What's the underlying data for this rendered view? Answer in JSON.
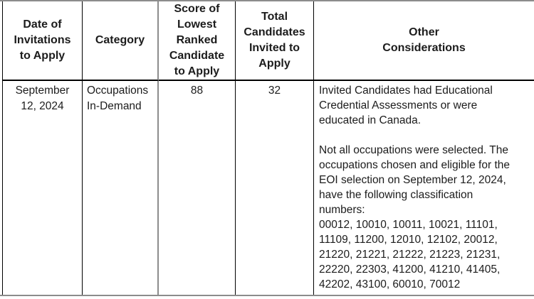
{
  "table": {
    "column_headers": [
      "Date of\nInvitations\nto Apply",
      "Category",
      "Score of\nLowest\nRanked\nCandidate\nto Apply",
      "Total\nCandidates\nInvited to\nApply",
      "Other\nConsiderations"
    ],
    "row": {
      "date": "September\n12, 2024",
      "category": "Occupations\nIn-Demand",
      "score": "88",
      "total_invited": "32",
      "other_considerations": "Invited Candidates had Educational\nCredential Assessments or were\neducated in Canada.\n\nNot all occupations were selected. The\noccupations chosen and eligible for the\nEOI selection on September 12, 2024,\nhave the following classification\nnumbers:\n00012, 10010, 10011, 10021, 11101,\n11109, 11200, 12010, 12102, 20012,\n21220, 21221, 21222, 21223, 21231,\n22220, 22303, 41200, 41210, 41405,\n42202, 43100, 60010, 70012"
    },
    "classification_numbers": [
      "00012",
      "10010",
      "10011",
      "10021",
      "11101",
      "11109",
      "11200",
      "12010",
      "12102",
      "20012",
      "21220",
      "21221",
      "21222",
      "21223",
      "21231",
      "22220",
      "22303",
      "41200",
      "41210",
      "41405",
      "42202",
      "43100",
      "60010",
      "70012"
    ]
  },
  "colors": {
    "border_black": "#000000",
    "border_gray": "#8c8c8c",
    "text": "#1c1c1c",
    "background": "#ffffff"
  }
}
